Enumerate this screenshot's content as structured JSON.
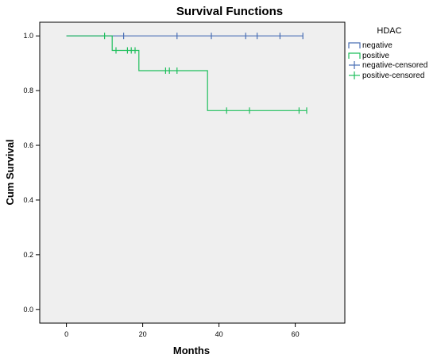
{
  "chart_data": {
    "type": "line",
    "title": "Survival Functions",
    "xlabel": "Months",
    "ylabel": "Cum Survival",
    "xlim": [
      -7,
      73
    ],
    "ylim": [
      -0.05,
      1.05
    ],
    "xticks": [
      0,
      20,
      40,
      60
    ],
    "yticks": [
      0.0,
      0.2,
      0.4,
      0.6,
      0.8,
      1.0
    ],
    "ytick_labels": [
      "0.0",
      "0.2",
      "0.4",
      "0.6",
      "0.8",
      "1.0"
    ],
    "background": "#efefef",
    "grid": false,
    "legend_title": "HDAC",
    "legend_position": "right",
    "legend": [
      "negative",
      "positive",
      "negative-censored",
      "positive-censored"
    ],
    "series": [
      {
        "name": "negative",
        "color": "#4a6fb5",
        "step": [
          [
            0,
            1.0
          ],
          [
            62,
            1.0
          ]
        ],
        "censored": [
          [
            15,
            1.0
          ],
          [
            29,
            1.0
          ],
          [
            38,
            1.0
          ],
          [
            47,
            1.0
          ],
          [
            50,
            1.0
          ],
          [
            56,
            1.0
          ],
          [
            62,
            1.0
          ]
        ]
      },
      {
        "name": "positive",
        "color": "#1fbf5c",
        "step": [
          [
            0,
            1.0
          ],
          [
            12,
            1.0
          ],
          [
            12,
            0.947
          ],
          [
            19,
            0.947
          ],
          [
            19,
            0.873
          ],
          [
            37,
            0.873
          ],
          [
            37,
            0.727
          ],
          [
            63,
            0.727
          ]
        ],
        "censored": [
          [
            10,
            1.0
          ],
          [
            13,
            0.947
          ],
          [
            16,
            0.947
          ],
          [
            17,
            0.947
          ],
          [
            18,
            0.947
          ],
          [
            26,
            0.873
          ],
          [
            27,
            0.873
          ],
          [
            29,
            0.873
          ],
          [
            42,
            0.727
          ],
          [
            48,
            0.727
          ],
          [
            61,
            0.727
          ],
          [
            63,
            0.727
          ]
        ]
      }
    ]
  }
}
